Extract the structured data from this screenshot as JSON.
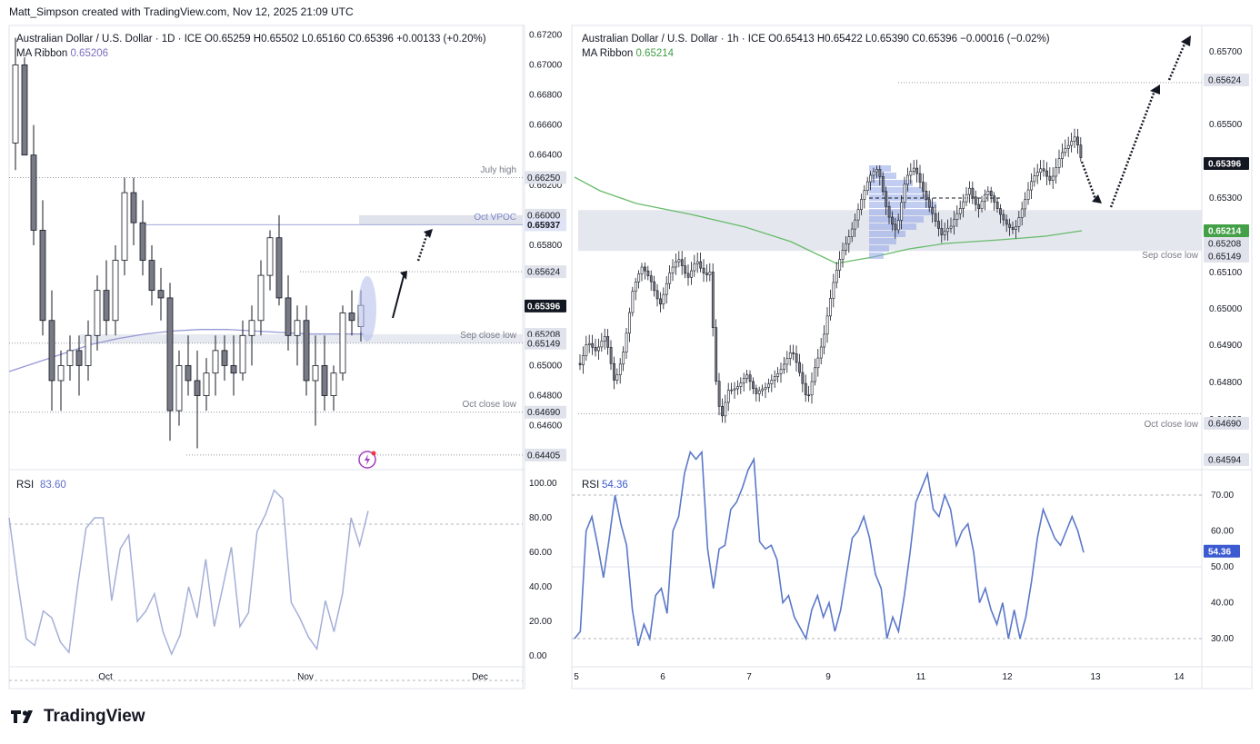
{
  "header": "Matt_Simpson created with TradingView.com, Nov 12, 2025 21:09 UTC",
  "branding": {
    "logo_text": "TradingView",
    "icon": "tradingview-logo-icon"
  },
  "left_chart": {
    "symbol": "Australian Dollar / U.S. Dollar · 1D · ICE",
    "ohlc": {
      "o": "O0.65259",
      "h": "H0.65502",
      "l": "L0.65160",
      "c": "C0.65396",
      "chg": "+0.00133 (+0.20%)"
    },
    "ma_label": "MA Ribbon",
    "ma_value": "0.65206",
    "price_ticks": [
      "0.67200",
      "0.67000",
      "0.66800",
      "0.66600",
      "0.66400",
      "0.66200",
      "0.66000",
      "0.65800",
      "0.65600",
      "0.65400",
      "0.65200",
      "0.65000",
      "0.64800",
      "0.64600"
    ],
    "price_badges": [
      {
        "v": "0.66250",
        "label": "July high",
        "style": "level"
      },
      {
        "v": "0.66000",
        "label": "",
        "style": "plain"
      },
      {
        "v": "0.65937",
        "label": "Oct VPOC",
        "style": "blue"
      },
      {
        "v": "0.65624",
        "label": "",
        "style": "level"
      },
      {
        "v": "0.65396",
        "label": "",
        "style": "dark"
      },
      {
        "v": "0.65208",
        "label": "",
        "style": "level"
      },
      {
        "v": "0.65149",
        "label": "Sep close low",
        "style": "level"
      },
      {
        "v": "0.64690",
        "label": "Oct close low",
        "style": "level"
      },
      {
        "v": "0.64405",
        "label": "",
        "style": "level"
      }
    ],
    "x_labels": [
      "Oct",
      "Nov",
      "Dec"
    ],
    "rsi_label": "RSI",
    "rsi_value": "83.60",
    "rsi_ticks": [
      "100.00",
      "80.00",
      "60.00",
      "40.00",
      "20.00",
      "0.00"
    ]
  },
  "right_chart": {
    "symbol": "Australian Dollar / U.S. Dollar · 1h · ICE",
    "ohlc": {
      "o": "O0.65413",
      "h": "H0.65422",
      "l": "L0.65390",
      "c": "C0.65396",
      "chg": "−0.00016 (−0.02%)"
    },
    "ma_label": "MA Ribbon",
    "ma_value": "0.65214",
    "price_ticks": [
      "0.65700",
      "0.65500",
      "0.65300",
      "0.65100",
      "0.65000",
      "0.64900",
      "0.64800",
      "0.64600"
    ],
    "price_badges": [
      {
        "v": "0.65624",
        "label": "",
        "style": "level"
      },
      {
        "v": "0.65396",
        "label": "",
        "style": "dark"
      },
      {
        "v": "0.65214",
        "label": "",
        "style": "green"
      },
      {
        "v": "0.65208",
        "label": "",
        "style": "level"
      },
      {
        "v": "0.65149",
        "label": "Sep close low",
        "style": "level"
      },
      {
        "v": "0.64690",
        "label": "Oct close low",
        "style": "level"
      },
      {
        "v": "0.64594",
        "label": "",
        "style": "level"
      }
    ],
    "x_labels": [
      "5",
      "6",
      "7",
      "9",
      "11",
      "12",
      "13",
      "14"
    ],
    "rsi_label": "RSI",
    "rsi_value": "54.36",
    "rsi_ticks": [
      "70.00",
      "60.00",
      "50.00",
      "40.00",
      "30.00"
    ]
  },
  "colors": {
    "up": "#ffffff",
    "down": "#787b86",
    "border": "#131722",
    "ribbon_left": "#9598d6",
    "ribbon_right": "#66bb6a",
    "rsi_left": "#a4afd8",
    "rsi_right": "#5b78c9",
    "zone": "#d1d4dc"
  },
  "chart_data": [
    {
      "type": "candlestick",
      "title": "Australian Dollar / U.S. Dollar · 1D · ICE",
      "ylim": [
        0.6435,
        0.6725
      ],
      "candles": [
        [
          0.6648,
          0.6718,
          0.663,
          0.67
        ],
        [
          0.67,
          0.6705,
          0.664,
          0.664
        ],
        [
          0.664,
          0.666,
          0.658,
          0.659
        ],
        [
          0.659,
          0.661,
          0.652,
          0.653
        ],
        [
          0.653,
          0.655,
          0.647,
          0.649
        ],
        [
          0.649,
          0.651,
          0.647,
          0.65
        ],
        [
          0.65,
          0.652,
          0.649,
          0.651
        ],
        [
          0.651,
          0.652,
          0.648,
          0.65
        ],
        [
          0.65,
          0.653,
          0.649,
          0.652
        ],
        [
          0.652,
          0.656,
          0.651,
          0.655
        ],
        [
          0.655,
          0.657,
          0.652,
          0.653
        ],
        [
          0.653,
          0.658,
          0.652,
          0.657
        ],
        [
          0.657,
          0.6625,
          0.656,
          0.6615
        ],
        [
          0.6615,
          0.6625,
          0.658,
          0.6595
        ],
        [
          0.6595,
          0.661,
          0.656,
          0.657
        ],
        [
          0.657,
          0.658,
          0.654,
          0.655
        ],
        [
          0.655,
          0.6565,
          0.653,
          0.6545
        ],
        [
          0.6545,
          0.6555,
          0.645,
          0.647
        ],
        [
          0.647,
          0.651,
          0.646,
          0.65
        ],
        [
          0.65,
          0.652,
          0.648,
          0.649
        ],
        [
          0.649,
          0.651,
          0.6445,
          0.648
        ],
        [
          0.648,
          0.6505,
          0.647,
          0.6495
        ],
        [
          0.6495,
          0.652,
          0.648,
          0.651
        ],
        [
          0.651,
          0.652,
          0.649,
          0.65
        ],
        [
          0.65,
          0.652,
          0.648,
          0.6495
        ],
        [
          0.6495,
          0.653,
          0.649,
          0.652
        ],
        [
          0.652,
          0.654,
          0.65,
          0.653
        ],
        [
          0.653,
          0.657,
          0.652,
          0.656
        ],
        [
          0.656,
          0.659,
          0.655,
          0.6585
        ],
        [
          0.6585,
          0.66,
          0.654,
          0.6545
        ],
        [
          0.6545,
          0.656,
          0.651,
          0.652
        ],
        [
          0.652,
          0.654,
          0.65,
          0.653
        ],
        [
          0.653,
          0.654,
          0.648,
          0.649
        ],
        [
          0.649,
          0.652,
          0.646,
          0.65
        ],
        [
          0.65,
          0.652,
          0.647,
          0.648
        ],
        [
          0.648,
          0.65,
          0.647,
          0.6495
        ],
        [
          0.6495,
          0.654,
          0.649,
          0.6535
        ],
        [
          0.6535,
          0.655,
          0.652,
          0.653
        ],
        [
          0.6526,
          0.655,
          0.6516,
          0.654
        ]
      ],
      "ma_ribbon": [
        0.6496,
        0.6502,
        0.6508,
        0.6514,
        0.6518,
        0.6521,
        0.6523,
        0.6524,
        0.6524,
        0.6523,
        0.6522,
        0.6521,
        0.6521,
        0.6521
      ],
      "rsi": [
        80,
        43,
        10,
        6,
        26,
        22,
        8,
        2,
        40,
        74,
        80,
        80,
        32,
        62,
        70,
        20,
        26,
        36,
        14,
        1,
        12,
        40,
        22,
        56,
        17,
        40,
        63,
        17,
        25,
        72,
        82,
        96,
        91,
        31,
        22,
        11,
        4,
        32,
        14,
        36,
        80,
        64,
        84
      ]
    },
    {
      "type": "candlestick",
      "title": "Australian Dollar / U.S. Dollar · 1h · ICE",
      "ylim": [
        0.6455,
        0.6578
      ],
      "rsi": [
        30,
        32,
        60,
        64,
        56,
        47,
        58,
        70,
        62,
        56,
        38,
        28,
        34,
        30,
        42,
        44,
        37,
        60,
        64,
        76,
        82,
        80,
        82,
        55,
        44,
        55,
        56,
        66,
        68,
        72,
        77,
        80,
        57,
        55,
        56,
        52,
        40,
        42,
        36,
        33,
        30,
        38,
        42,
        36,
        40,
        32,
        38,
        48,
        58,
        60,
        64,
        58,
        48,
        44,
        30,
        36,
        32,
        42,
        54,
        68,
        72,
        76,
        66,
        64,
        70,
        66,
        56,
        60,
        62,
        54,
        40,
        44,
        38,
        34,
        40,
        30,
        38,
        30,
        36,
        46,
        58,
        66,
        62,
        58,
        56,
        60,
        64,
        60,
        54
      ]
    }
  ]
}
